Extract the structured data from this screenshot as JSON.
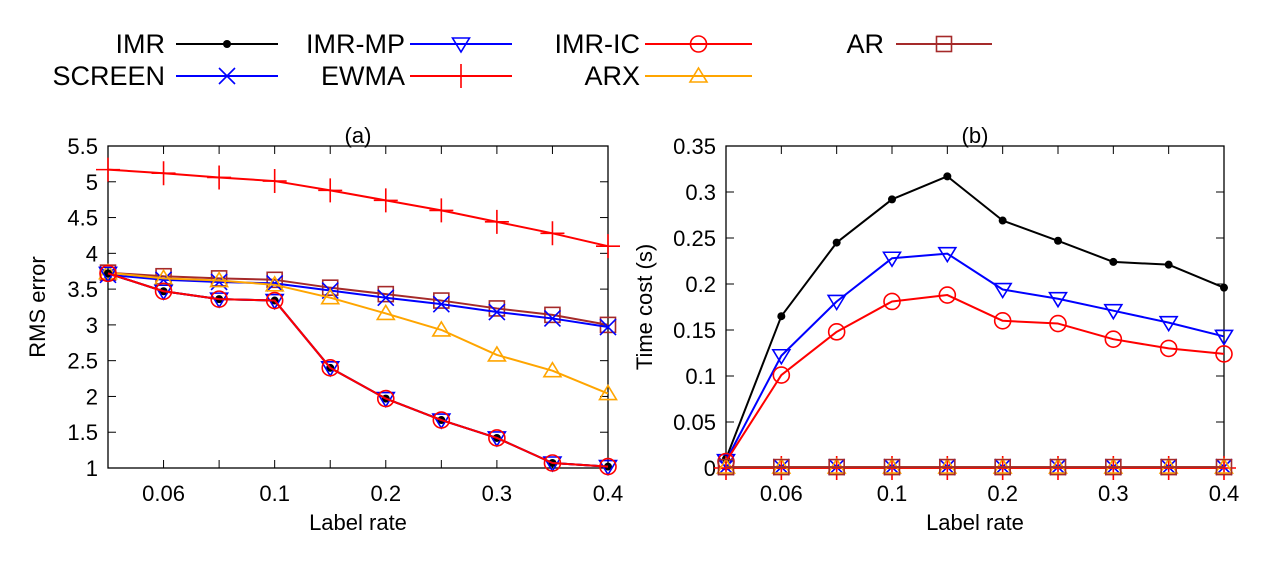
{
  "legend": [
    {
      "key": "imr",
      "label": "IMR",
      "color": "#000000",
      "marker": "filled-circle-small"
    },
    {
      "key": "imr_mp",
      "label": "IMR-MP",
      "color": "#0000ff",
      "marker": "triangle-down"
    },
    {
      "key": "imr_ic",
      "label": "IMR-IC",
      "color": "#ff0000",
      "marker": "circle"
    },
    {
      "key": "ar",
      "label": "AR",
      "color": "#a52a2a",
      "marker": "square"
    },
    {
      "key": "screen",
      "label": "SCREEN",
      "color": "#0000ff",
      "marker": "x"
    },
    {
      "key": "ewma",
      "label": "EWMA",
      "color": "#ff0000",
      "marker": "plus"
    },
    {
      "key": "arx",
      "label": "ARX",
      "color": "#ffa500",
      "marker": "triangle-up"
    }
  ],
  "chart_data": [
    {
      "type": "line",
      "title": "(a)",
      "xlabel": "Label rate",
      "ylabel": "RMS error",
      "ylim": [
        1,
        5.5
      ],
      "grid": false,
      "x_scale": "categorical",
      "x_points": 10,
      "x_tick_labels": [
        {
          "index": 1,
          "label": "0.06"
        },
        {
          "index": 3,
          "label": "0.1"
        },
        {
          "index": 5,
          "label": "0.2"
        },
        {
          "index": 7,
          "label": "0.3"
        },
        {
          "index": 9,
          "label": "0.4"
        }
      ],
      "y_ticks": [
        1,
        1.5,
        2,
        2.5,
        3,
        3.5,
        4,
        4.5,
        5,
        5.5
      ],
      "series": [
        {
          "key": "ewma",
          "name": "EWMA",
          "values": [
            5.17,
            5.12,
            5.06,
            5.01,
            4.88,
            4.74,
            4.6,
            4.44,
            4.28,
            4.1
          ]
        },
        {
          "key": "ar",
          "name": "AR",
          "values": [
            3.73,
            3.68,
            3.65,
            3.63,
            3.52,
            3.43,
            3.34,
            3.23,
            3.14,
            3.0
          ]
        },
        {
          "key": "screen",
          "name": "SCREEN",
          "values": [
            3.7,
            3.63,
            3.6,
            3.58,
            3.48,
            3.38,
            3.29,
            3.18,
            3.09,
            2.97
          ]
        },
        {
          "key": "arx",
          "name": "ARX",
          "values": [
            3.73,
            3.65,
            3.62,
            3.56,
            3.38,
            3.16,
            2.93,
            2.58,
            2.36,
            2.04
          ]
        },
        {
          "key": "imr",
          "name": "IMR",
          "values": [
            3.72,
            3.47,
            3.36,
            3.34,
            2.4,
            1.97,
            1.67,
            1.42,
            1.07,
            1.02
          ]
        },
        {
          "key": "imr_mp",
          "name": "IMR-MP",
          "values": [
            3.72,
            3.47,
            3.36,
            3.34,
            2.4,
            1.97,
            1.67,
            1.42,
            1.07,
            1.02
          ]
        },
        {
          "key": "imr_ic",
          "name": "IMR-IC",
          "values": [
            3.72,
            3.47,
            3.36,
            3.34,
            2.4,
            1.97,
            1.67,
            1.42,
            1.07,
            1.02
          ]
        }
      ]
    },
    {
      "type": "line",
      "title": "(b)",
      "xlabel": "Label rate",
      "ylabel": "Time cost (s)",
      "ylim": [
        0,
        0.35
      ],
      "grid": false,
      "x_scale": "categorical",
      "x_points": 10,
      "x_tick_labels": [
        {
          "index": 1,
          "label": "0.06"
        },
        {
          "index": 3,
          "label": "0.1"
        },
        {
          "index": 5,
          "label": "0.2"
        },
        {
          "index": 7,
          "label": "0.3"
        },
        {
          "index": 9,
          "label": "0.4"
        }
      ],
      "y_ticks": [
        0,
        0.05,
        0.1,
        0.15,
        0.2,
        0.25,
        0.3,
        0.35
      ],
      "series": [
        {
          "key": "imr",
          "name": "IMR",
          "values": [
            0.01,
            0.165,
            0.245,
            0.292,
            0.317,
            0.269,
            0.247,
            0.224,
            0.221,
            0.196
          ]
        },
        {
          "key": "imr_mp",
          "name": "IMR-MP",
          "values": [
            0.008,
            0.122,
            0.181,
            0.228,
            0.233,
            0.194,
            0.184,
            0.171,
            0.158,
            0.143
          ]
        },
        {
          "key": "imr_ic",
          "name": "IMR-IC",
          "values": [
            0.007,
            0.101,
            0.148,
            0.181,
            0.188,
            0.16,
            0.157,
            0.14,
            0.13,
            0.124
          ]
        },
        {
          "key": "screen",
          "name": "SCREEN",
          "values": [
            0.001,
            0.001,
            0.001,
            0.001,
            0.001,
            0.001,
            0.001,
            0.001,
            0.001,
            0.001
          ]
        },
        {
          "key": "ewma",
          "name": "EWMA",
          "values": [
            0.0,
            0.0,
            0.0,
            0.0,
            0.0,
            0.0,
            0.0,
            0.0,
            0.0,
            0.0
          ]
        },
        {
          "key": "arx",
          "name": "ARX",
          "values": [
            0.001,
            0.001,
            0.001,
            0.001,
            0.001,
            0.001,
            0.001,
            0.001,
            0.001,
            0.001
          ]
        },
        {
          "key": "ar",
          "name": "AR",
          "values": [
            0.001,
            0.001,
            0.001,
            0.001,
            0.001,
            0.001,
            0.001,
            0.001,
            0.001,
            0.001
          ]
        }
      ]
    }
  ]
}
